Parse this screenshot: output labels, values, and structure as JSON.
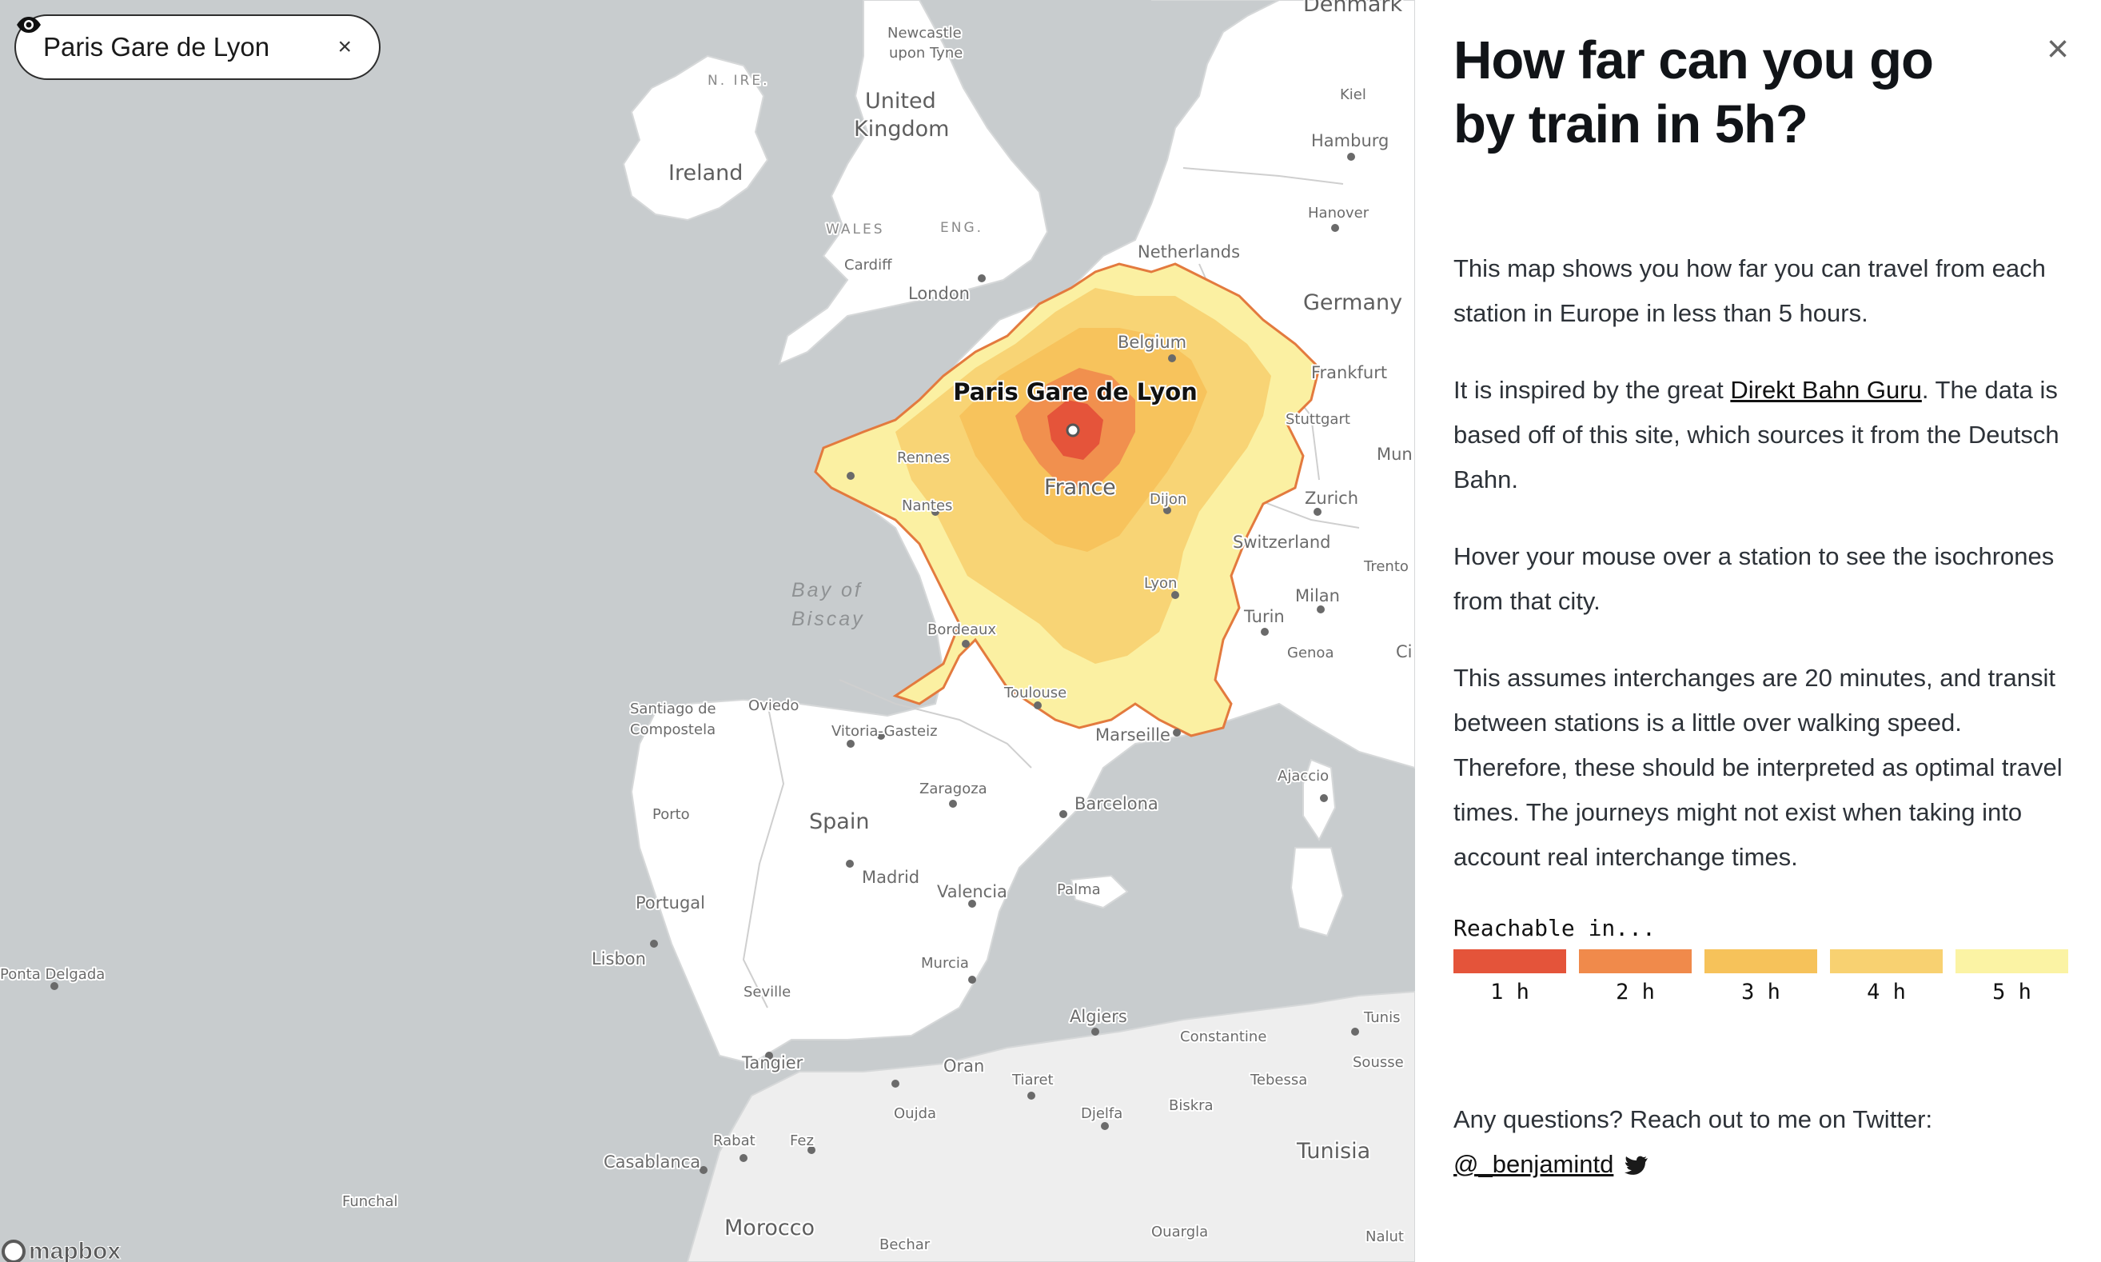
{
  "station_chip": {
    "label": "Paris Gare de Lyon",
    "icon": "eye-icon",
    "close": "×"
  },
  "map": {
    "station_label": "Paris Gare de Lyon",
    "attribution": "mapbox",
    "labels": {
      "newcastle": "Newcastle",
      "upon_tyne": "upon Tyne",
      "n_ire": "N. IRE.",
      "uk1": "United",
      "uk2": "Kingdom",
      "ireland": "Ireland",
      "wales": "WALES",
      "eng": "ENG.",
      "cardiff": "Cardiff",
      "london": "London",
      "denmark": "Denmark",
      "kiel": "Kiel",
      "hamburg": "Hamburg",
      "hanover": "Hanover",
      "netherlands": "Netherlands",
      "germany": "Germany",
      "belgium": "Belgium",
      "frankfurt": "Frankfurt",
      "stuttgart": "Stuttgart",
      "mun": "Mun",
      "rennes": "Rennes",
      "nantes": "Nantes",
      "france": "France",
      "dijon": "Dijon",
      "zurich": "Zurich",
      "switzerland": "Switzerland",
      "trento": "Trento",
      "lyon": "Lyon",
      "milan": "Milan",
      "turin": "Turin",
      "genoa": "Genoa",
      "ci": "Ci",
      "bay_of": "Bay of",
      "biscay": "Biscay",
      "bordeaux": "Bordeaux",
      "toulouse": "Toulouse",
      "marseille": "Marseille",
      "ajaccio": "Ajaccio",
      "santiago1": "Santiago de",
      "santiago2": "Compostela",
      "oviedo": "Oviedo",
      "vitoria": "Vitoria-Gasteiz",
      "zaragoza": "Zaragoza",
      "barcelona": "Barcelona",
      "porto": "Porto",
      "spain": "Spain",
      "madrid": "Madrid",
      "valencia": "Valencia",
      "palma": "Palma",
      "portugal": "Portugal",
      "lisbon": "Lisbon",
      "ponta": "Ponta Delgada",
      "murcia": "Murcia",
      "seville": "Seville",
      "algiers": "Algiers",
      "tunis": "Tunis",
      "constantine": "Constantine",
      "sousse": "Sousse",
      "tangier": "Tangier",
      "oran": "Oran",
      "tiaret": "Tiaret",
      "tebessa": "Tebessa",
      "biskra": "Biskra",
      "oujda": "Oujda",
      "djelfa": "Djelfa",
      "tunisia": "Tunisia",
      "rabat": "Rabat",
      "fez": "Fez",
      "casablanca": "Casablanca",
      "funchal": "Funchal",
      "morocco": "Morocco",
      "bechar": "Bechar",
      "ouargla": "Ouargla",
      "nalut": "Nalut"
    }
  },
  "panel": {
    "title": "How far can you go by train in 5h?",
    "close": "×",
    "p1": "This map shows you how far you can travel from each station in Europe in less than 5 hours.",
    "p2_before": "It is inspired by the great ",
    "p2_link": "Direkt Bahn Guru",
    "p2_after": ". The data is based off of this site, which sources it from the Deutsch Bahn.",
    "p3": "Hover your mouse over a station to see the isochrones from that city.",
    "p4": "This assumes interchanges are 20 minutes, and transit between stations is a little over walking speed. Therefore, these should be interpreted as optimal travel times. The journeys might not exist when taking into account real interchange times.",
    "legend_title": "Reachable in...",
    "legend": [
      {
        "label": "1 h",
        "color": "#e4543a"
      },
      {
        "label": "2 h",
        "color": "#f08a4b"
      },
      {
        "label": "3 h",
        "color": "#f6c25a"
      },
      {
        "label": "4 h",
        "color": "#f8d171"
      },
      {
        "label": "5 h",
        "color": "#fbf3a4"
      }
    ],
    "contact": "Any questions? Reach out to me on Twitter:",
    "twitter_handle": "@_benjamintd",
    "twitter_icon": "twitter-bird-icon"
  }
}
